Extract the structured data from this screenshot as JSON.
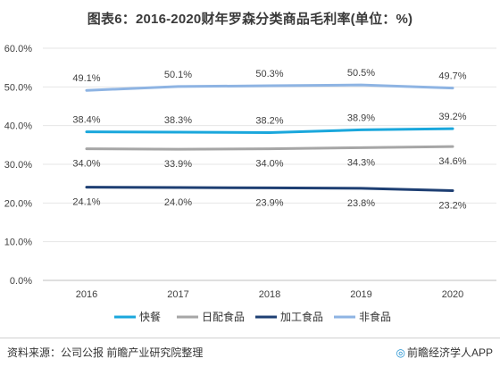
{
  "chart_data": {
    "type": "line",
    "title": "图表6：2016-2020财年罗森分类商品毛利率(单位：%)",
    "categories": [
      "2016",
      "2017",
      "2018",
      "2019",
      "2020"
    ],
    "yticks": [
      "0.0%",
      "10.0%",
      "20.0%",
      "30.0%",
      "40.0%",
      "50.0%",
      "60.0%"
    ],
    "ylim": [
      0,
      60
    ],
    "grid": true,
    "legend_position": "bottom",
    "series": [
      {
        "name": "快餐",
        "color": "#1aa7dc",
        "values": [
          38.4,
          38.3,
          38.2,
          38.9,
          39.2
        ],
        "labels": [
          "38.4%",
          "38.3%",
          "38.2%",
          "38.9%",
          "39.2%"
        ],
        "label_side": "above"
      },
      {
        "name": "日配食品",
        "color": "#a6a6a6",
        "values": [
          34.0,
          33.9,
          34.0,
          34.3,
          34.6
        ],
        "labels": [
          "34.0%",
          "33.9%",
          "34.0%",
          "34.3%",
          "34.6%"
        ],
        "label_side": "below"
      },
      {
        "name": "加工食品",
        "color": "#1e3f73",
        "values": [
          24.1,
          24.0,
          23.9,
          23.8,
          23.2
        ],
        "labels": [
          "24.1%",
          "24.0%",
          "23.9%",
          "23.8%",
          "23.2%"
        ],
        "label_side": "below"
      },
      {
        "name": "非食品",
        "color": "#8eb4e3",
        "values": [
          49.1,
          50.1,
          50.3,
          50.5,
          49.7
        ],
        "labels": [
          "49.1%",
          "50.1%",
          "50.3%",
          "50.5%",
          "49.7%"
        ],
        "label_side": "above"
      }
    ]
  },
  "footer": {
    "source": "资料来源：公司公报 前瞻产业研究院整理",
    "brand_logo": "◎",
    "brand": "前瞻经济学人APP"
  }
}
